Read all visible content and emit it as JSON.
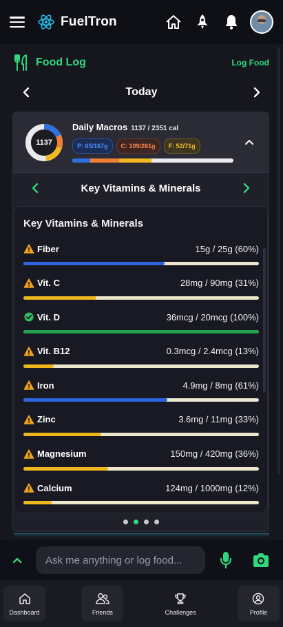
{
  "app": {
    "name": "FuelTron"
  },
  "topbar": {
    "icons": [
      "menu-icon",
      "home-icon",
      "rocket-icon",
      "bell-icon",
      "avatar"
    ]
  },
  "section": {
    "title": "Food Log",
    "action": "Log Food"
  },
  "date_nav": {
    "label": "Today"
  },
  "macros": {
    "title": "Daily Macros",
    "calories_text": "1137 / 2351 cal",
    "donut_value": "1137",
    "calories": 1137,
    "calories_goal": 2351,
    "protein_label": "P: 65/167g",
    "carbs_label": "C: 109/261g",
    "fat_label": "F: 52/71g",
    "colors": {
      "protein": "#2f6fe0",
      "carbs": "#f07f35",
      "fat": "#f2b820",
      "track": "#e9e9ee"
    },
    "bar_fractions": {
      "protein": 0.11,
      "carbs": 0.18,
      "fat": 0.2
    },
    "donut_fractions": {
      "protein": 0.18,
      "carbs": 0.12,
      "fat": 0.18
    }
  },
  "vitamin_nav": {
    "title": "Key Vitamins & Minerals"
  },
  "vitamins": {
    "card_title": "Key Vitamins & Minerals",
    "items": [
      {
        "name": "Fiber",
        "value": "15g / 25g (60%)",
        "percent": 60,
        "status": "warning-icon",
        "color": "#2f64e0"
      },
      {
        "name": "Vit. C",
        "value": "28mg / 90mg (31%)",
        "percent": 31,
        "status": "warning-icon",
        "color": "#f0b71c"
      },
      {
        "name": "Vit. D",
        "value": "36mcg / 20mcg (100%)",
        "percent": 100,
        "status": "check-icon",
        "color": "#1fa04d"
      },
      {
        "name": "Vit. B12",
        "value": "0.3mcg / 2.4mcg (13%)",
        "percent": 13,
        "status": "warning-icon",
        "color": "#f0b71c"
      },
      {
        "name": "Iron",
        "value": "4.9mg / 8mg (61%)",
        "percent": 61,
        "status": "warning-icon",
        "color": "#2f64e0"
      },
      {
        "name": "Zinc",
        "value": "3.6mg / 11mg (33%)",
        "percent": 33,
        "status": "warning-icon",
        "color": "#f0b71c"
      },
      {
        "name": "Magnesium",
        "value": "150mg / 420mg (36%)",
        "percent": 36,
        "status": "warning-icon",
        "color": "#f0b71c"
      },
      {
        "name": "Calcium",
        "value": "124mg / 1000mg (12%)",
        "percent": 12,
        "status": "warning-icon",
        "color": "#f0b71c"
      }
    ]
  },
  "pager": {
    "count": 4,
    "active": 1
  },
  "chat": {
    "placeholder": "Ask me anything or log food..."
  },
  "tabs": [
    {
      "label": "Dashboard",
      "icon": "home-icon",
      "boxed": true
    },
    {
      "label": "Friends",
      "icon": "friends-icon",
      "boxed": true
    },
    {
      "label": "Challenges",
      "icon": "trophy-icon",
      "boxed": false
    },
    {
      "label": "Profile",
      "icon": "profile-icon",
      "boxed": true
    }
  ],
  "colors": {
    "accent": "#2fd87c",
    "background": "#15161e",
    "warning": "#f0a11c"
  }
}
